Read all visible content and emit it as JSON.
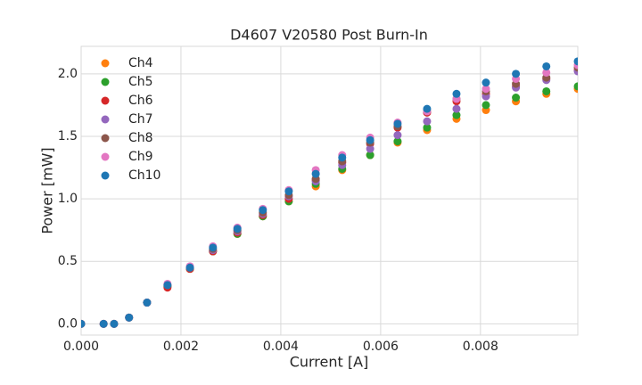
{
  "chart_data": {
    "type": "scatter",
    "title": "D4607 V20580 Post Burn-In",
    "x_label": "Current [A]",
    "y_label": "Power [mW]",
    "x": [
      0,
      0.00045,
      0.00066,
      0.00096,
      0.00132,
      0.00173,
      0.00218,
      0.00264,
      0.00313,
      0.00364,
      0.00416,
      0.0047,
      0.00523,
      0.00579,
      0.00634,
      0.00693,
      0.00752,
      0.00811,
      0.00871,
      0.00932,
      0.00995
    ],
    "series": [
      {
        "name": "Ch4",
        "color": "#ff7f0e",
        "values": [
          0,
          0,
          0,
          0.05,
          0.17,
          0.3,
          0.44,
          0.58,
          0.72,
          0.86,
          0.98,
          1.1,
          1.23,
          1.35,
          1.45,
          1.55,
          1.64,
          1.71,
          1.78,
          1.84,
          1.88
        ]
      },
      {
        "name": "Ch5",
        "color": "#2ca02c",
        "values": [
          0,
          0,
          0,
          0.05,
          0.17,
          0.3,
          0.44,
          0.58,
          0.72,
          0.86,
          0.98,
          1.12,
          1.24,
          1.35,
          1.46,
          1.57,
          1.67,
          1.75,
          1.81,
          1.86,
          1.9
        ]
      },
      {
        "name": "Ch6",
        "color": "#d62728",
        "values": [
          0,
          0,
          0,
          0.05,
          0.17,
          0.29,
          0.44,
          0.58,
          0.73,
          0.87,
          1.0,
          1.15,
          1.29,
          1.44,
          1.57,
          1.69,
          1.78,
          1.84,
          1.9,
          1.96,
          2.03
        ]
      },
      {
        "name": "Ch7",
        "color": "#9467bd",
        "values": [
          0,
          0,
          0,
          0.05,
          0.17,
          0.31,
          0.45,
          0.59,
          0.74,
          0.88,
          1.02,
          1.14,
          1.27,
          1.4,
          1.51,
          1.62,
          1.72,
          1.82,
          1.89,
          1.95,
          2.02
        ]
      },
      {
        "name": "Ch8",
        "color": "#8c564b",
        "values": [
          0,
          0,
          0,
          0.05,
          0.17,
          0.31,
          0.45,
          0.6,
          0.75,
          0.89,
          1.03,
          1.16,
          1.3,
          1.45,
          1.58,
          1.7,
          1.8,
          1.86,
          1.92,
          1.97,
          2.05
        ]
      },
      {
        "name": "Ch9",
        "color": "#e377c2",
        "values": [
          0,
          0,
          0,
          0.05,
          0.17,
          0.32,
          0.46,
          0.62,
          0.77,
          0.92,
          1.07,
          1.23,
          1.35,
          1.49,
          1.61,
          1.7,
          1.8,
          1.88,
          1.96,
          2.01,
          2.07
        ]
      },
      {
        "name": "Ch10",
        "color": "#1f77b4",
        "values": [
          0,
          0,
          0,
          0.05,
          0.17,
          0.31,
          0.45,
          0.61,
          0.76,
          0.91,
          1.06,
          1.2,
          1.33,
          1.47,
          1.6,
          1.72,
          1.84,
          1.93,
          2.0,
          2.06,
          2.1
        ]
      }
    ],
    "xlim": [
      0,
      0.00995
    ],
    "ylim": [
      -0.09,
      2.22
    ],
    "xticks": [
      {
        "value": 0,
        "label": "0.000"
      },
      {
        "value": 0.002,
        "label": "0.002"
      },
      {
        "value": 0.004,
        "label": "0.004"
      },
      {
        "value": 0.006,
        "label": "0.006"
      },
      {
        "value": 0.008,
        "label": "0.008"
      }
    ],
    "yticks": [
      {
        "value": 0,
        "label": "0.0"
      },
      {
        "value": 0.5,
        "label": "0.5"
      },
      {
        "value": 1,
        "label": "1.0"
      },
      {
        "value": 1.5,
        "label": "1.5"
      },
      {
        "value": 2,
        "label": "2.0"
      }
    ],
    "grid": true,
    "legend": "upper-left"
  }
}
